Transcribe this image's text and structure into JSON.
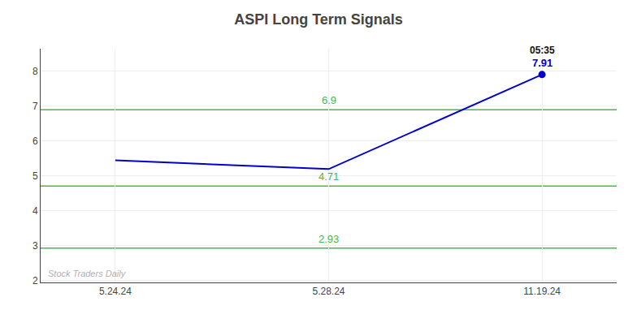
{
  "chart_data": {
    "type": "line",
    "title": "ASPI Long Term Signals",
    "categories": [
      "5.24.24",
      "5.28.24",
      "11.19.24"
    ],
    "values": [
      5.45,
      5.2,
      7.91
    ],
    "color": "#0000cc",
    "marker": "circle",
    "hlines": [
      {
        "y": 6.9,
        "label": "6.9",
        "color": "#44bb44"
      },
      {
        "y": 4.71,
        "label": "4.71",
        "color": "#44bb44"
      },
      {
        "y": 2.93,
        "label": "2.93",
        "color": "#44bb44"
      }
    ],
    "annotations": [
      {
        "text": "05:35",
        "color": "#111111"
      },
      {
        "text": "7.91",
        "color": "#0000cc"
      },
      {
        "text": "Stock Traders Daily",
        "color": "#b0b0b0"
      }
    ],
    "ylim": [
      1.95,
      8.65
    ],
    "yticks": [
      2,
      3,
      4,
      5,
      6,
      7,
      8
    ],
    "grid": true
  }
}
